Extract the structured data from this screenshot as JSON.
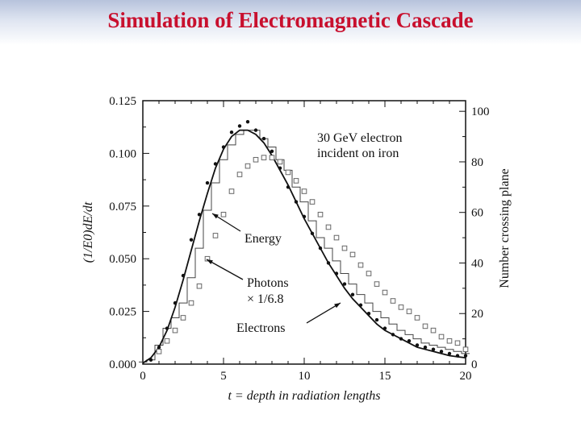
{
  "slide": {
    "title": "Simulation of Electromagnetic Cascade"
  },
  "chart_data": {
    "type": "line",
    "xlabel": "t = depth in radiation lengths",
    "ylabel": "(1/E0)dE/dt",
    "y2label": "Number crossing plane",
    "xlim": [
      0,
      20
    ],
    "ylim": [
      0,
      0.125
    ],
    "y2lim": [
      0,
      104.2
    ],
    "xticks": [
      "0",
      "5",
      "10",
      "15",
      "20"
    ],
    "yticks": [
      "0.000",
      "0.025",
      "0.050",
      "0.075",
      "0.100",
      "0.125"
    ],
    "y2ticks": [
      "0",
      "20",
      "40",
      "60",
      "80",
      "100"
    ],
    "annotation": "30 GeV electron\nincident on iron",
    "labels": {
      "energy": "Energy",
      "photons": "Photons",
      "photons_scale": "× 1/6.8",
      "electrons": "Electrons"
    },
    "series": [
      {
        "name": "Energy",
        "style": "line",
        "x": [
          0,
          0.5,
          1,
          1.5,
          2,
          2.5,
          3,
          3.5,
          4,
          4.5,
          5,
          5.5,
          6,
          6.5,
          7,
          7.5,
          8,
          8.5,
          9,
          9.5,
          10,
          10.5,
          11,
          11.5,
          12,
          12.5,
          13,
          13.5,
          14,
          14.5,
          15,
          15.5,
          16,
          16.5,
          17,
          17.5,
          18,
          18.5,
          19,
          19.5,
          20
        ],
        "values": [
          0.0005,
          0.003,
          0.008,
          0.016,
          0.027,
          0.04,
          0.054,
          0.068,
          0.081,
          0.093,
          0.102,
          0.108,
          0.111,
          0.111,
          0.109,
          0.105,
          0.099,
          0.092,
          0.085,
          0.077,
          0.069,
          0.062,
          0.055,
          0.048,
          0.042,
          0.036,
          0.031,
          0.027,
          0.023,
          0.019,
          0.016,
          0.014,
          0.012,
          0.01,
          0.008,
          0.007,
          0.006,
          0.005,
          0.004,
          0.0035,
          0.003
        ]
      },
      {
        "name": "Energy (histogram)",
        "style": "step",
        "x": [
          0,
          0.5,
          1,
          1.5,
          2,
          2.5,
          3,
          3.5,
          4,
          4.5,
          5,
          5.5,
          6,
          6.5,
          7,
          7.5,
          8,
          8.5,
          9,
          9.5,
          10,
          10.5,
          11,
          11.5,
          12,
          12.5,
          13,
          13.5,
          14,
          14.5,
          15,
          15.5,
          16,
          16.5,
          17,
          17.5,
          18,
          18.5,
          19,
          19.5,
          20
        ],
        "values": [
          0.001,
          0.002,
          0.009,
          0.017,
          0.022,
          0.029,
          0.041,
          0.055,
          0.073,
          0.086,
          0.097,
          0.104,
          0.109,
          0.111,
          0.111,
          0.107,
          0.103,
          0.097,
          0.092,
          0.084,
          0.077,
          0.068,
          0.06,
          0.055,
          0.049,
          0.043,
          0.038,
          0.033,
          0.029,
          0.025,
          0.022,
          0.019,
          0.016,
          0.014,
          0.012,
          0.01,
          0.009,
          0.008,
          0.007,
          0.006,
          0.005
        ]
      },
      {
        "name": "Photons",
        "style": "square",
        "scale": "× 1/6.8",
        "x": [
          1,
          1.5,
          2,
          2.5,
          3,
          3.5,
          4,
          4.5,
          5,
          5.5,
          6,
          6.5,
          7,
          7.5,
          8,
          8.5,
          9,
          9.5,
          10,
          10.5,
          11,
          11.5,
          12,
          12.5,
          13,
          13.5,
          14,
          14.5,
          15,
          15.5,
          16,
          16.5,
          17,
          17.5,
          18,
          18.5,
          19,
          19.5,
          20
        ],
        "values": [
          0.006,
          0.011,
          0.016,
          0.022,
          0.029,
          0.037,
          0.05,
          0.061,
          0.071,
          0.082,
          0.09,
          0.094,
          0.097,
          0.098,
          0.098,
          0.096,
          0.091,
          0.087,
          0.082,
          0.077,
          0.071,
          0.065,
          0.06,
          0.055,
          0.052,
          0.047,
          0.043,
          0.038,
          0.034,
          0.03,
          0.027,
          0.025,
          0.022,
          0.018,
          0.016,
          0.013,
          0.011,
          0.01,
          0.007
        ]
      },
      {
        "name": "Electrons",
        "style": "dot",
        "x": [
          0.5,
          1,
          1.5,
          2,
          2.5,
          3,
          3.5,
          4,
          4.5,
          5,
          5.5,
          6,
          6.5,
          7,
          7.5,
          8,
          8.5,
          9,
          9.5,
          10,
          10.5,
          11,
          11.5,
          12,
          12.5,
          13,
          13.5,
          14,
          14.5,
          15,
          15.5,
          16,
          16.5,
          17,
          17.5,
          18,
          18.5,
          19,
          19.5,
          20
        ],
        "values": [
          0.002,
          0.008,
          0.017,
          0.029,
          0.042,
          0.059,
          0.071,
          0.086,
          0.095,
          0.103,
          0.11,
          0.113,
          0.115,
          0.111,
          0.107,
          0.101,
          0.093,
          0.084,
          0.077,
          0.07,
          0.062,
          0.055,
          0.048,
          0.043,
          0.038,
          0.033,
          0.028,
          0.024,
          0.021,
          0.017,
          0.014,
          0.012,
          0.011,
          0.009,
          0.008,
          0.007,
          0.006,
          0.005,
          0.004,
          0.004
        ]
      }
    ]
  }
}
